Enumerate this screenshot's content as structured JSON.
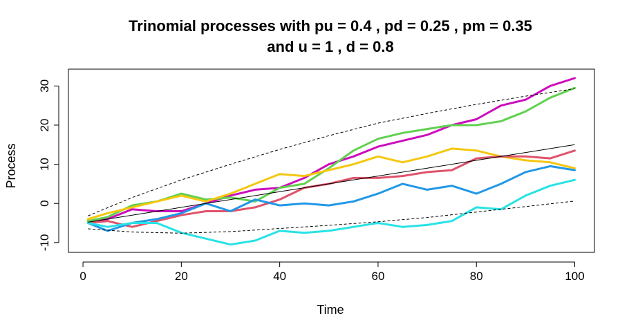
{
  "chart_data": {
    "type": "line",
    "title": "Trinomial processes with pu = 0.4 , pd = 0.25 , pm = 0.35",
    "subtitle": "and u = 1 , d = 0.8",
    "xlabel": "Time",
    "ylabel": "Process",
    "xlim": [
      -2.96,
      104
    ],
    "ylim": [
      -12.5,
      34.3
    ],
    "xticks": [
      0,
      20,
      40,
      60,
      80,
      100
    ],
    "yticks": [
      -10,
      0,
      10,
      20,
      30
    ],
    "grid": false,
    "mean_line": {
      "x": [
        1,
        10,
        20,
        30,
        40,
        50,
        60,
        70,
        80,
        90,
        100
      ],
      "y": [
        -4.8,
        -3.0,
        -1.0,
        1.0,
        3.0,
        5.0,
        7.0,
        9.0,
        11.0,
        13.0,
        15.0
      ]
    },
    "upper_band": {
      "x": [
        1,
        10,
        20,
        30,
        40,
        50,
        60,
        70,
        80,
        90,
        100
      ],
      "y": [
        -3.2,
        1.5,
        6.0,
        10.0,
        13.8,
        17.3,
        20.5,
        23.0,
        25.3,
        27.4,
        29.3
      ]
    },
    "lower_band": {
      "x": [
        1,
        10,
        20,
        30,
        40,
        50,
        60,
        70,
        80,
        90,
        100
      ],
      "y": [
        -6.5,
        -7.3,
        -7.6,
        -7.2,
        -6.4,
        -5.6,
        -4.7,
        -3.6,
        -2.2,
        -0.8,
        0.6
      ]
    },
    "series": [
      {
        "color": "#CD0BBC",
        "x": [
          1,
          5,
          10,
          15,
          20,
          25,
          30,
          35,
          40,
          45,
          50,
          55,
          60,
          65,
          70,
          75,
          80,
          85,
          90,
          95,
          100
        ],
        "y": [
          -4.5,
          -4.0,
          -1.5,
          -2.0,
          -2.0,
          0.0,
          2.0,
          3.5,
          4.0,
          6.5,
          10.0,
          12.0,
          14.5,
          16.0,
          17.5,
          20.0,
          21.5,
          25.0,
          26.5,
          30.0,
          32.0
        ]
      },
      {
        "color": "#61D04F",
        "x": [
          1,
          5,
          10,
          15,
          20,
          25,
          30,
          35,
          40,
          45,
          50,
          55,
          60,
          65,
          70,
          75,
          80,
          85,
          90,
          95,
          100
        ],
        "y": [
          -4.5,
          -3.5,
          -0.5,
          0.5,
          2.5,
          1.0,
          1.5,
          0.5,
          4.0,
          5.0,
          9.0,
          13.5,
          16.5,
          18.0,
          19.0,
          20.0,
          20.0,
          21.0,
          23.5,
          27.0,
          29.5
        ]
      },
      {
        "color": "#F5C710",
        "x": [
          1,
          5,
          10,
          15,
          20,
          25,
          30,
          35,
          40,
          45,
          50,
          55,
          60,
          65,
          70,
          75,
          80,
          85,
          90,
          95,
          100
        ],
        "y": [
          -4.0,
          -2.5,
          -1.0,
          0.5,
          2.0,
          0.5,
          2.5,
          5.0,
          7.5,
          7.0,
          8.5,
          10.0,
          12.0,
          10.5,
          12.0,
          14.0,
          13.5,
          12.0,
          11.0,
          10.5,
          9.0
        ]
      },
      {
        "color": "#DF536B",
        "x": [
          1,
          5,
          10,
          15,
          20,
          25,
          30,
          35,
          40,
          45,
          50,
          55,
          60,
          65,
          70,
          75,
          80,
          85,
          90,
          95,
          100
        ],
        "y": [
          -5.0,
          -4.5,
          -6.0,
          -4.5,
          -3.0,
          -2.0,
          -2.0,
          -1.0,
          1.0,
          4.0,
          5.0,
          6.5,
          6.5,
          7.0,
          8.0,
          8.5,
          11.5,
          12.0,
          12.0,
          11.5,
          13.5
        ]
      },
      {
        "color": "#2297E6",
        "x": [
          1,
          5,
          10,
          15,
          20,
          25,
          30,
          35,
          40,
          45,
          50,
          55,
          60,
          65,
          70,
          75,
          80,
          85,
          90,
          95,
          100
        ],
        "y": [
          -5.0,
          -7.0,
          -5.0,
          -4.0,
          -2.5,
          0.0,
          -2.0,
          1.0,
          -0.5,
          0.0,
          -0.5,
          0.5,
          2.5,
          5.0,
          3.5,
          4.5,
          2.5,
          5.0,
          8.0,
          9.5,
          8.5
        ]
      },
      {
        "color": "#28E2E5",
        "x": [
          1,
          5,
          10,
          15,
          20,
          25,
          30,
          35,
          40,
          45,
          50,
          55,
          60,
          65,
          70,
          75,
          80,
          85,
          90,
          95,
          100
        ],
        "y": [
          -5.0,
          -6.0,
          -5.0,
          -5.0,
          -7.5,
          -9.0,
          -10.5,
          -9.5,
          -7.0,
          -7.5,
          -7.0,
          -6.0,
          -5.0,
          -6.0,
          -5.5,
          -4.5,
          -1.0,
          -1.5,
          2.0,
          4.5,
          6.0
        ]
      }
    ]
  }
}
